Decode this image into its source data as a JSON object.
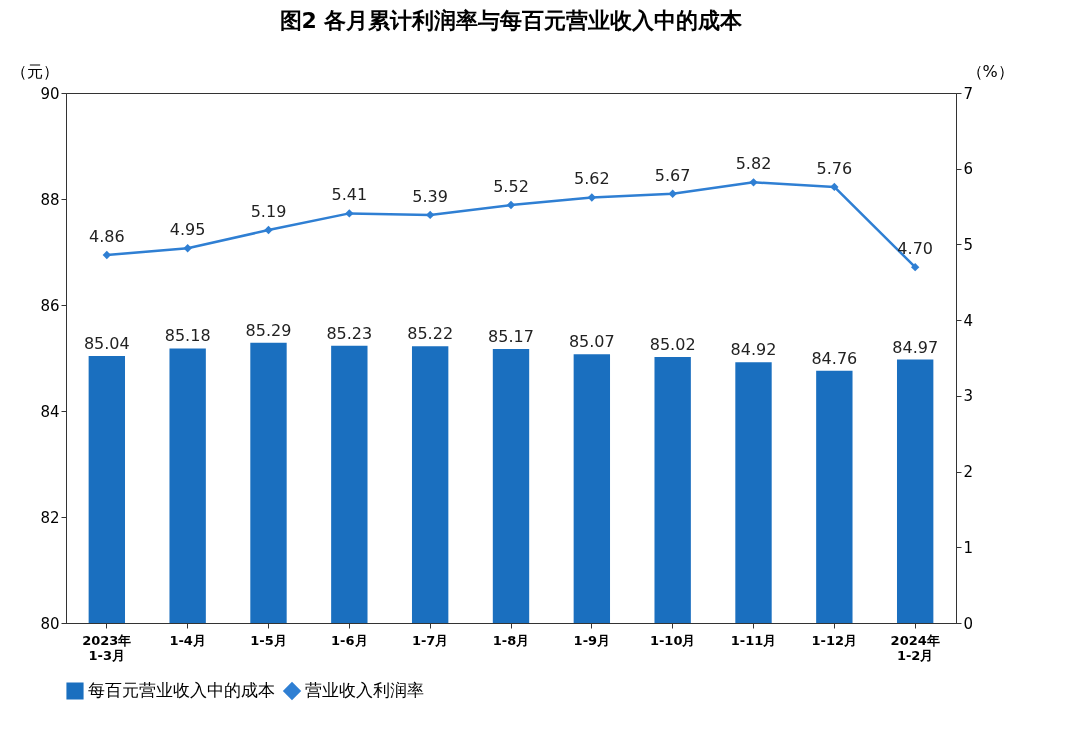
{
  "chart_data": {
    "type": "bar",
    "title": "图2  各月累计利润率与每百元营业收入中的成本",
    "categories": [
      "2023年\n1-3月",
      "1-4月",
      "1-5月",
      "1-6月",
      "1-7月",
      "1-8月",
      "1-9月",
      "1-10月",
      "1-11月",
      "1-12月",
      "2024年\n1-2月"
    ],
    "series": [
      {
        "name": "每百元营业收入中的成本",
        "color": "#1a6fbf",
        "values": [
          85.04,
          85.18,
          85.29,
          85.23,
          85.22,
          85.17,
          85.07,
          85.02,
          84.92,
          84.76,
          84.97
        ]
      },
      {
        "name": "营业收入利润率",
        "type": "line",
        "axis": "y2",
        "color": "#2f7fd3",
        "values": [
          4.86,
          4.95,
          5.19,
          5.41,
          5.39,
          5.52,
          5.62,
          5.67,
          5.82,
          5.76,
          4.7
        ],
        "value_labels": [
          "4.86",
          "4.95",
          "5.19",
          "5.41",
          "5.39",
          "5.52",
          "5.62",
          "5.67",
          "5.82",
          "5.76",
          "4.70"
        ]
      }
    ],
    "ylabel": "（元）",
    "y2label": "（%）",
    "ylim": [
      80,
      90
    ],
    "yticks": [
      80,
      82,
      84,
      86,
      88,
      90
    ],
    "y2lim": [
      0,
      7
    ],
    "y2ticks": [
      0,
      1,
      2,
      3,
      4,
      5,
      6,
      7
    ],
    "marker": "diamond",
    "line_style": "solid",
    "legend": "bottom",
    "data_labels": true
  }
}
